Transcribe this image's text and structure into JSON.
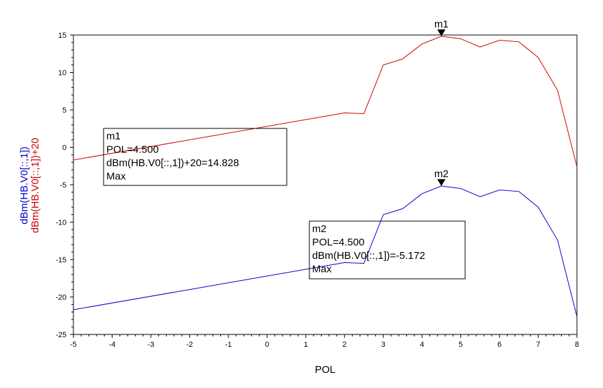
{
  "chart_data": {
    "type": "line",
    "xlabel": "POL",
    "ylabels": [
      "dBm(HB.V0[::,1])",
      "dBm(HB.V0[::,1])+20"
    ],
    "xlim": [
      -5,
      8
    ],
    "ylim": [
      -25,
      15
    ],
    "xticks": [
      -5,
      -4,
      -3,
      -2,
      -1,
      0,
      1,
      2,
      3,
      4,
      5,
      6,
      7,
      8
    ],
    "yticks": [
      -25,
      -20,
      -15,
      -10,
      -5,
      0,
      5,
      10,
      15
    ],
    "x": [
      -5,
      2,
      2.5,
      3,
      3.5,
      4,
      4.5,
      5,
      5.5,
      6,
      6.5,
      7,
      7.5,
      8
    ],
    "series": [
      {
        "name": "dBm(HB.V0[::,1])+20",
        "color": "#cc0000",
        "values": [
          -1.7,
          4.6,
          4.5,
          11.0,
          11.8,
          13.8,
          14.828,
          14.5,
          13.4,
          14.3,
          14.1,
          12.0,
          7.6,
          -2.6
        ]
      },
      {
        "name": "dBm(HB.V0[::,1])",
        "color": "#0000cc",
        "values": [
          -21.7,
          -15.4,
          -15.5,
          -9.0,
          -8.2,
          -6.2,
          -5.172,
          -5.5,
          -6.6,
          -5.7,
          -5.9,
          -8.0,
          -12.4,
          -22.6
        ]
      }
    ],
    "markers": [
      {
        "name": "m1",
        "x": 4.5,
        "y": 14.828,
        "lines": [
          "m1",
          "POL=4.500",
          "dBm(HB.V0[::,1])+20=14.828",
          "Max"
        ]
      },
      {
        "name": "m2",
        "x": 4.5,
        "y": -5.172,
        "lines": [
          "m2",
          "POL=4.500",
          "dBm(HB.V0[::,1])=-5.172",
          "Max"
        ]
      }
    ],
    "grid": false,
    "legend": "none"
  }
}
